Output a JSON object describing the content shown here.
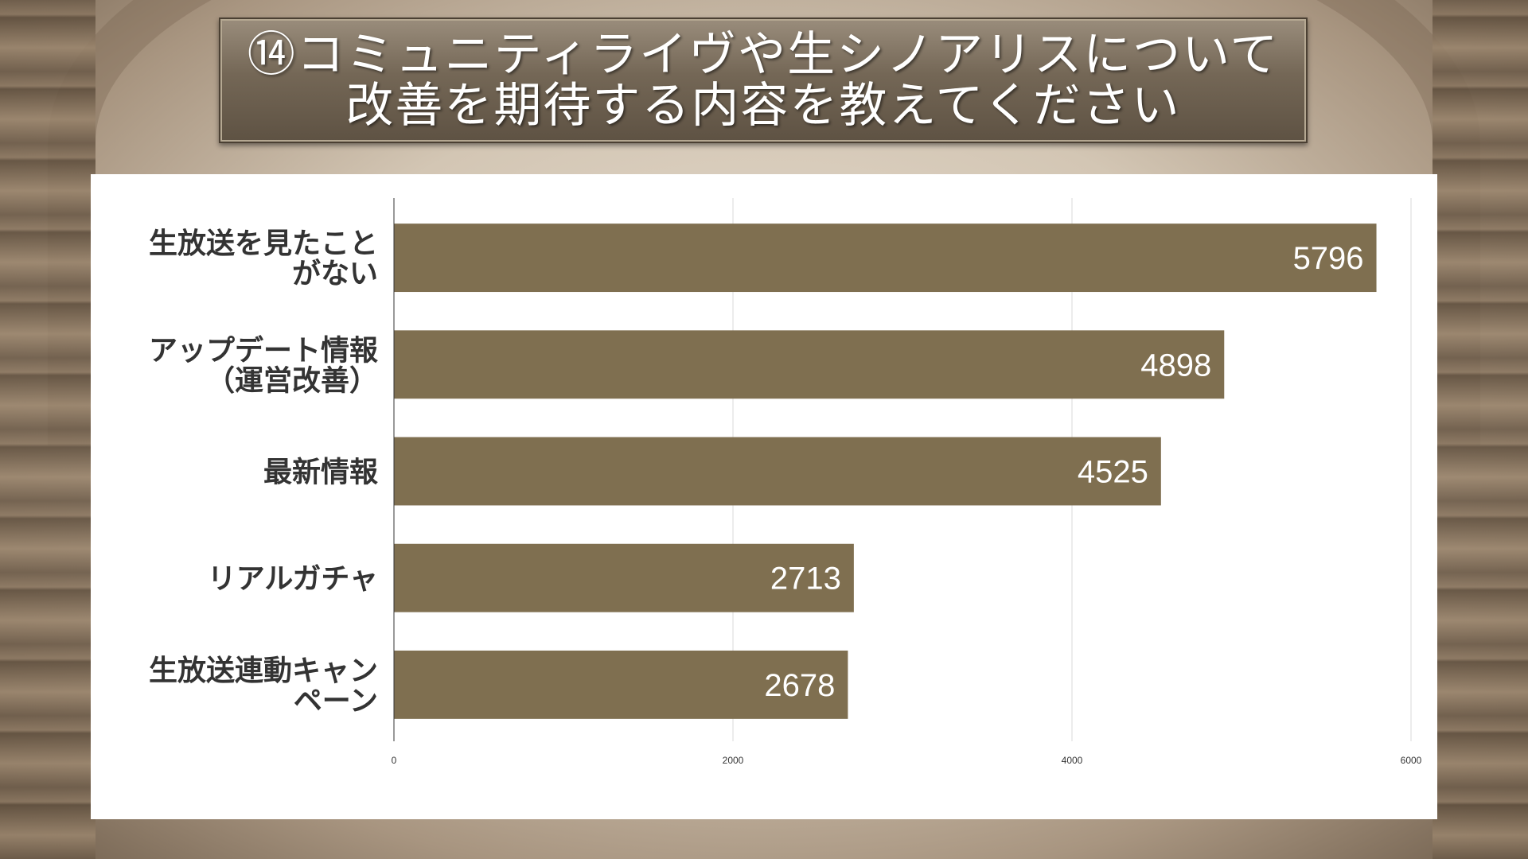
{
  "title": {
    "lines": [
      "⑭コミュニティライヴや生シノアリスについて",
      "改善を期待する内容を教えてください"
    ]
  },
  "colors": {
    "bar": "#7f6f50",
    "grid": "#d9d9d9",
    "axis": "#333333",
    "bar_label": "#ffffff",
    "category_label": "#333333"
  },
  "chart_data": {
    "type": "bar",
    "orientation": "horizontal",
    "categories": [
      [
        "生放送を見たこと",
        "がない"
      ],
      [
        "アップデート情報",
        "（運営改善）"
      ],
      [
        "最新情報"
      ],
      [
        "リアルガチャ"
      ],
      [
        "生放送連動キャン",
        "ペーン"
      ]
    ],
    "values": [
      5796,
      4898,
      4525,
      2713,
      2678
    ],
    "xlim": [
      0,
      6000
    ],
    "xticks": [
      0,
      2000,
      4000,
      6000
    ],
    "data_labels": true,
    "grid": true,
    "legend": "none"
  }
}
